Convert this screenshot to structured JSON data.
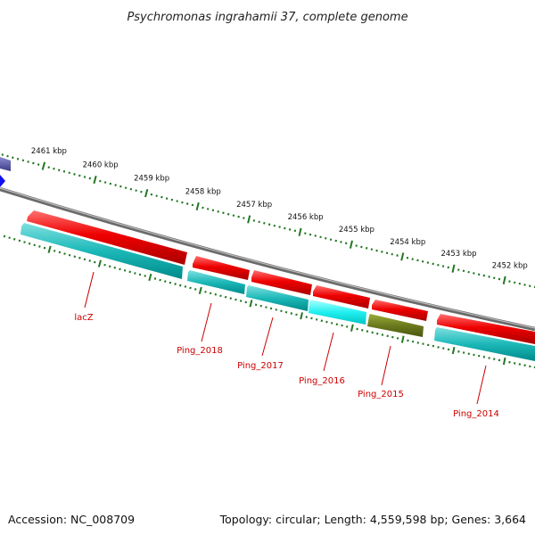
{
  "title": "Psychromonas ingrahamii 37, complete genome",
  "footer": {
    "accession": "Accession: NC_008709",
    "summary": "Topology: circular; Length: 4,559,598 bp; Genes: 3,664"
  },
  "colors": {
    "forward_gene": "#ee0000",
    "reverse_gene": "#00cccc",
    "backbone": "#888888",
    "ticks": "#227722",
    "label": "#cc0000",
    "olive_gene": "#6b7a1e",
    "partial_gene": "#5a5aa8"
  },
  "scale_labels": [
    "2461 kbp",
    "2460 kbp",
    "2459 kbp",
    "2458 kbp",
    "2457 kbp",
    "2456 kbp",
    "2455 kbp",
    "2454 kbp",
    "2453 kbp",
    "2452 kbp"
  ],
  "genes": [
    {
      "label": "lacZ"
    },
    {
      "label": "Ping_2018"
    },
    {
      "label": "Ping_2017"
    },
    {
      "label": "Ping_2016"
    },
    {
      "label": "Ping_2015"
    },
    {
      "label": "Ping_2014"
    }
  ]
}
